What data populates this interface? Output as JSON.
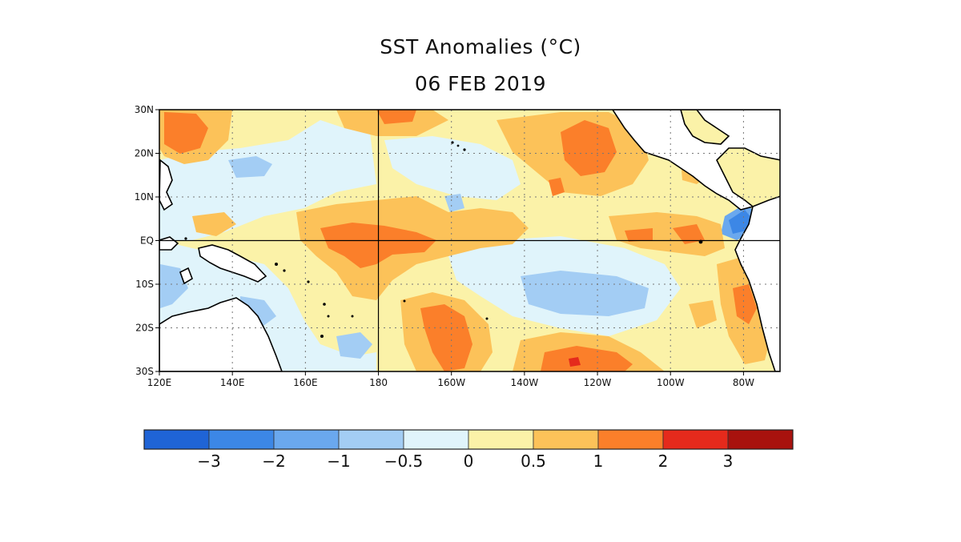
{
  "title": "SST Anomalies (°C)",
  "subtitle": "06 FEB 2019",
  "map": {
    "region": "tropical Pacific",
    "lon_range": [
      120,
      290
    ],
    "lat_range": [
      -30,
      30
    ],
    "lat_ticks": [
      {
        "value": 30,
        "label": "30N"
      },
      {
        "value": 20,
        "label": "20N"
      },
      {
        "value": 10,
        "label": "10N"
      },
      {
        "value": 0,
        "label": "EQ"
      },
      {
        "value": -10,
        "label": "10S"
      },
      {
        "value": -20,
        "label": "20S"
      },
      {
        "value": -30,
        "label": "30S"
      }
    ],
    "lon_ticks": [
      {
        "value": 120,
        "label": "120E"
      },
      {
        "value": 140,
        "label": "140E"
      },
      {
        "value": 160,
        "label": "160E"
      },
      {
        "value": 180,
        "label": "180"
      },
      {
        "value": 200,
        "label": "160W"
      },
      {
        "value": 220,
        "label": "140W"
      },
      {
        "value": 240,
        "label": "120W"
      },
      {
        "value": 260,
        "label": "100W"
      },
      {
        "value": 280,
        "label": "80W"
      }
    ],
    "reference_lines": {
      "equator": 0,
      "dateline": 180
    },
    "grid": "dotted"
  },
  "colorbar": {
    "colors": [
      "#1f64d6",
      "#3c87e6",
      "#6aa8ee",
      "#a3cdf4",
      "#e0f4fb",
      "#fbf2a8",
      "#fcc259",
      "#fb7f2a",
      "#e52a1c",
      "#a8120e"
    ],
    "labels": [
      "−3",
      "−2",
      "−1",
      "−0.5",
      "0",
      "0.5",
      "1",
      "2",
      "3"
    ],
    "values": [
      -3,
      -2,
      -1,
      -0.5,
      0,
      0.5,
      1,
      2,
      3
    ]
  },
  "colors": {
    "land": "#ffffff",
    "coast": "#000000"
  }
}
